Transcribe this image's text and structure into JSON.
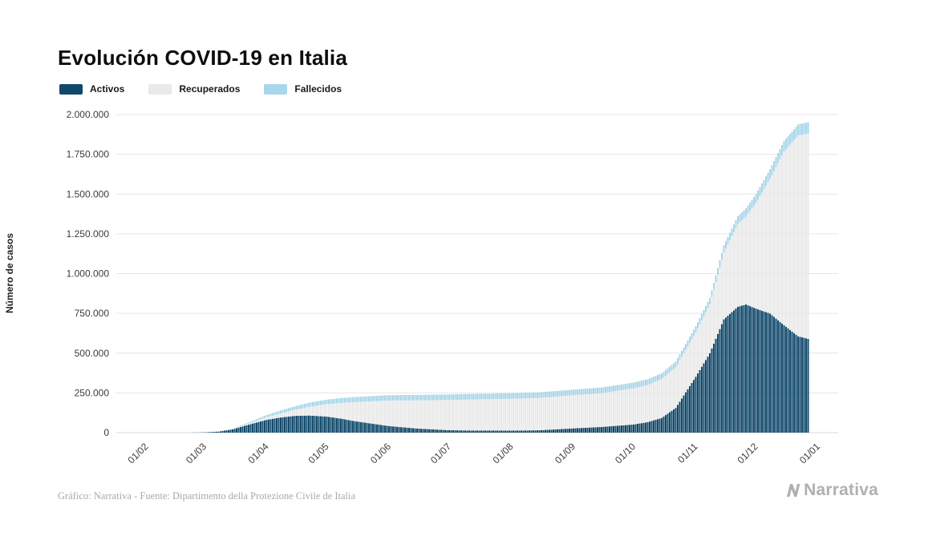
{
  "page": {
    "title": "Evolución COVID-19 en Italia",
    "footer_credit": "Gráfico: Narrativa - Fuente: Dipartimento della Protezione Civile de Italia",
    "brand": "Narrativa"
  },
  "chart_data": {
    "type": "area",
    "stacked": true,
    "title": "Evolución COVID-19 en Italia",
    "xlabel": "",
    "ylabel": "Número de casos",
    "ylim": [
      0,
      2000000
    ],
    "grid": true,
    "legend_position": "top-left",
    "colors": {
      "activos": "#11496b",
      "recuperados": "#e9e9e9",
      "fallecidos": "#a8d6ea",
      "gridline": "#e6e6e6",
      "zero_line": "#d9d9d9",
      "tick_text": "#3c3c3c"
    },
    "y_ticks": [
      {
        "value": 0,
        "label": "0"
      },
      {
        "value": 250000,
        "label": "250.000"
      },
      {
        "value": 500000,
        "label": "500.000"
      },
      {
        "value": 750000,
        "label": "750.000"
      },
      {
        "value": 1000000,
        "label": "1.000.000"
      },
      {
        "value": 1250000,
        "label": "1.250.000"
      },
      {
        "value": 1500000,
        "label": "1.500.000"
      },
      {
        "value": 1750000,
        "label": "1.750.000"
      },
      {
        "value": 2000000,
        "label": "2.000.000"
      }
    ],
    "x_ticks": [
      {
        "date": "2020-02-01",
        "label": "01/02"
      },
      {
        "date": "2020-03-01",
        "label": "01/03"
      },
      {
        "date": "2020-04-01",
        "label": "01/04"
      },
      {
        "date": "2020-05-01",
        "label": "01/05"
      },
      {
        "date": "2020-06-01",
        "label": "01/06"
      },
      {
        "date": "2020-07-01",
        "label": "01/07"
      },
      {
        "date": "2020-08-01",
        "label": "01/08"
      },
      {
        "date": "2020-09-01",
        "label": "01/09"
      },
      {
        "date": "2020-10-01",
        "label": "01/10"
      },
      {
        "date": "2020-11-01",
        "label": "01/11"
      },
      {
        "date": "2020-12-01",
        "label": "01/12"
      },
      {
        "date": "2021-01-01",
        "label": "01/01"
      }
    ],
    "x_range": [
      "2020-01-17",
      "2021-01-11"
    ],
    "dates": [
      "2020-02-01",
      "2020-02-20",
      "2020-03-01",
      "2020-03-08",
      "2020-03-15",
      "2020-03-22",
      "2020-04-01",
      "2020-04-08",
      "2020-04-15",
      "2020-04-22",
      "2020-05-01",
      "2020-05-08",
      "2020-05-15",
      "2020-05-22",
      "2020-06-01",
      "2020-06-15",
      "2020-07-01",
      "2020-07-15",
      "2020-08-01",
      "2020-08-15",
      "2020-09-01",
      "2020-09-15",
      "2020-10-01",
      "2020-10-08",
      "2020-10-15",
      "2020-10-22",
      "2020-11-01",
      "2020-11-08",
      "2020-11-15",
      "2020-11-22",
      "2020-11-26",
      "2020-12-01",
      "2020-12-08",
      "2020-12-15",
      "2020-12-22",
      "2020-12-27"
    ],
    "series": [
      {
        "name": "Activos",
        "color": "#11496b",
        "values": [
          0,
          1,
          1577,
          6387,
          20603,
          46638,
          80572,
          95262,
          105418,
          107699,
          100943,
          87961,
          72070,
          59322,
          41367,
          25909,
          15255,
          12919,
          12422,
          14867,
          26754,
          35708,
          51263,
          65952,
          92445,
          155442,
          351386,
          499118,
          712490,
          791697,
          805947,
          779945,
          748819,
          675109,
          606000,
          590000
        ]
      },
      {
        "name": "Recuperados",
        "color": "#e9e9e9",
        "values": [
          0,
          0,
          83,
          622,
          2335,
          7024,
          16847,
          26491,
          38092,
          54543,
          78249,
          99023,
          120205,
          136720,
          160938,
          177010,
          190248,
          196246,
          200229,
          203326,
          208490,
          212432,
          227704,
          234099,
          244065,
          255005,
          279282,
          307378,
          420810,
          520022,
          551416,
          664089,
          846809,
          1093161,
          1262000,
          1290000
        ]
      },
      {
        "name": "Fallecidos",
        "color": "#a8d6ea",
        "values": [
          0,
          0,
          34,
          366,
          1809,
          5476,
          13155,
          17669,
          21645,
          25085,
          28236,
          30201,
          31610,
          32616,
          33475,
          34405,
          34818,
          35017,
          35146,
          35396,
          35491,
          35645,
          35941,
          36083,
          36372,
          36832,
          38826,
          41063,
          45229,
          49823,
          52850,
          55576,
          60606,
          65857,
          69800,
          71900
        ]
      }
    ]
  }
}
